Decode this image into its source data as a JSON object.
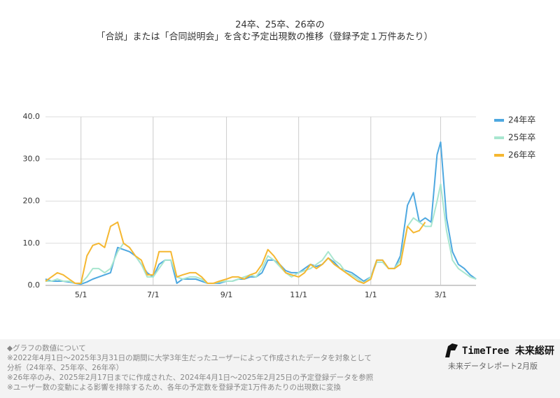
{
  "chart_data": {
    "type": "line",
    "title": "24卒、25卒、26卒の",
    "subtitle": "「合説」または「合同説明会」を含む予定出現数の推移（登録予定１万件あたり）",
    "x": [
      "4/1",
      "4/6",
      "4/11",
      "4/16",
      "4/21",
      "4/26",
      "5/1",
      "5/6",
      "5/11",
      "5/16",
      "5/21",
      "5/26",
      "6/1",
      "6/6",
      "6/11",
      "6/16",
      "6/21",
      "6/26",
      "7/1",
      "7/6",
      "7/11",
      "7/16",
      "7/21",
      "7/26",
      "8/1",
      "8/6",
      "8/11",
      "8/16",
      "8/21",
      "8/26",
      "9/1",
      "9/6",
      "9/11",
      "9/16",
      "9/21",
      "9/26",
      "10/1",
      "10/6",
      "10/11",
      "10/16",
      "10/21",
      "10/26",
      "11/1",
      "11/6",
      "11/11",
      "11/16",
      "11/21",
      "11/26",
      "12/1",
      "12/6",
      "12/11",
      "12/16",
      "12/21",
      "12/26",
      "1/1",
      "1/6",
      "1/11",
      "1/16",
      "1/21",
      "1/26",
      "2/1",
      "2/6",
      "2/11",
      "2/16",
      "2/21",
      "2/26",
      "3/1",
      "3/6",
      "3/11",
      "3/16",
      "3/21",
      "3/26",
      "3/31"
    ],
    "xticks": [
      "5/1",
      "7/1",
      "9/1",
      "11/1",
      "1/1",
      "3/1"
    ],
    "series": [
      {
        "name": "24年卒",
        "color": "#4ea8e0",
        "values": [
          1.5,
          1,
          1,
          1,
          0.8,
          0.5,
          0.3,
          0.8,
          1.5,
          2,
          2.5,
          3,
          9,
          8.5,
          8,
          7,
          5,
          3,
          2,
          5,
          6,
          6,
          0.5,
          1.5,
          1.5,
          1.5,
          1,
          0.5,
          0.5,
          0.5,
          1,
          1,
          1.5,
          1.5,
          2,
          2,
          3,
          6,
          6,
          5,
          3.5,
          3,
          3,
          4,
          5,
          4.5,
          5,
          6.5,
          5.5,
          4,
          3.5,
          3,
          2,
          1,
          2,
          6,
          6,
          4,
          4,
          7,
          19,
          22,
          15,
          16,
          15,
          31,
          34,
          16,
          8,
          5,
          4,
          2.5,
          1.5
        ]
      },
      {
        "name": "25年卒",
        "color": "#a8e6cf",
        "values": [
          1,
          1,
          1.5,
          1,
          1,
          0.5,
          0.5,
          2,
          4,
          4,
          3,
          4,
          8,
          10,
          9,
          7,
          5,
          2,
          2,
          4,
          6,
          6,
          2,
          1.5,
          2,
          2,
          1.5,
          0.5,
          0.5,
          0.8,
          1,
          1,
          1.5,
          2,
          2.5,
          2,
          4,
          7,
          6,
          4.5,
          3,
          2,
          3,
          3.5,
          4,
          5,
          6,
          8,
          6,
          5,
          3,
          2.5,
          1.5,
          0.5,
          2,
          5.5,
          5.5,
          4,
          4,
          6,
          14,
          16,
          15,
          14,
          14,
          20,
          24,
          13,
          6,
          4,
          3,
          2,
          1.5
        ]
      },
      {
        "name": "26年卒",
        "color": "#f5b731",
        "values": [
          1,
          2,
          3,
          2.5,
          1.5,
          0.5,
          0.5,
          7,
          9.5,
          10,
          9,
          14,
          15,
          10,
          9,
          7,
          6,
          2.5,
          2.5,
          8,
          8,
          8,
          2,
          2.5,
          3,
          3,
          2,
          0.5,
          0.5,
          1,
          1.5,
          2,
          2,
          1.5,
          2.5,
          3,
          5,
          8.5,
          7,
          5,
          3,
          2.5,
          2,
          3,
          5,
          4,
          5,
          6.5,
          5,
          4,
          3,
          2,
          1,
          0.5,
          1.5,
          6,
          6,
          4,
          4,
          5,
          14,
          12.5,
          13,
          15,
          null,
          null,
          null,
          null,
          null,
          null,
          null,
          null,
          null
        ]
      }
    ],
    "ylim": [
      0,
      40
    ],
    "yticks": [
      {
        "value": 0,
        "label": "0.0"
      },
      {
        "value": 10,
        "label": "10.0"
      },
      {
        "value": 20,
        "label": "20.0"
      },
      {
        "value": 30,
        "label": "30.0"
      },
      {
        "value": 40,
        "label": "40.0"
      }
    ],
    "grid": true,
    "legend": "right"
  },
  "footer": {
    "notes": [
      "◆グラフの数値について",
      "※2022年4月1日～2025年3月31日の期間に大学3年生だったユーザーによって作成されたデータを対象として",
      "分析（24年卒、25年卒、26年卒）",
      "※26年卒のみ、2025年2月17日までに作成された、2024年4月1日～2025年2月25日の予定登録データを参照",
      "※ユーザー数の変動による影響を排除するため、各年の予定数を登録予定1万件あたりの出現数に変換"
    ],
    "brand": "TimeTree 未来総研",
    "report": "未来データレポート2月版"
  }
}
